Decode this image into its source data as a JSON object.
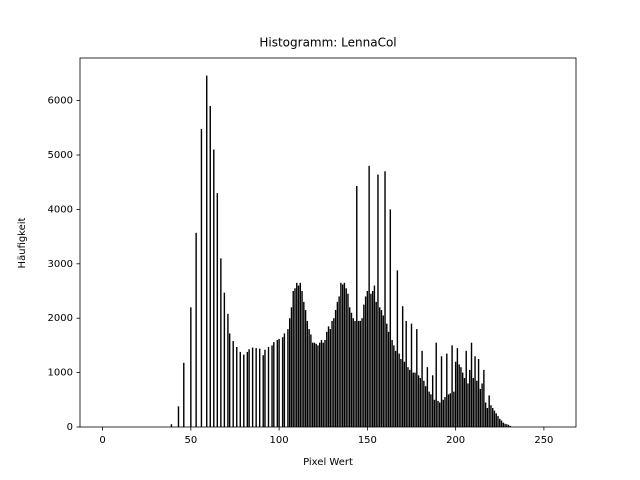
{
  "chart_data": {
    "type": "bar",
    "title": "Histogramm: LennaCol",
    "x_label": "Pixel Wert",
    "y_label": "Häufigkeit",
    "color": "#000000",
    "x": [
      0,
      1,
      2,
      3,
      4,
      5,
      6,
      7,
      8,
      9,
      10,
      11,
      12,
      13,
      14,
      15,
      16,
      17,
      18,
      19,
      20,
      21,
      22,
      23,
      24,
      25,
      26,
      27,
      28,
      29,
      30,
      31,
      32,
      33,
      34,
      35,
      36,
      37,
      38,
      39,
      40,
      41,
      42,
      43,
      44,
      45,
      46,
      47,
      48,
      49,
      50,
      51,
      52,
      53,
      54,
      55,
      56,
      57,
      58,
      59,
      60,
      61,
      62,
      63,
      64,
      65,
      66,
      67,
      68,
      69,
      70,
      71,
      72,
      73,
      74,
      75,
      76,
      77,
      78,
      79,
      80,
      81,
      82,
      83,
      84,
      85,
      86,
      87,
      88,
      89,
      90,
      91,
      92,
      93,
      94,
      95,
      96,
      97,
      98,
      99,
      100,
      101,
      102,
      103,
      104,
      105,
      106,
      107,
      108,
      109,
      110,
      111,
      112,
      113,
      114,
      115,
      116,
      117,
      118,
      119,
      120,
      121,
      122,
      123,
      124,
      125,
      126,
      127,
      128,
      129,
      130,
      131,
      132,
      133,
      134,
      135,
      136,
      137,
      138,
      139,
      140,
      141,
      142,
      143,
      144,
      145,
      146,
      147,
      148,
      149,
      150,
      151,
      152,
      153,
      154,
      155,
      156,
      157,
      158,
      159,
      160,
      161,
      162,
      163,
      164,
      165,
      166,
      167,
      168,
      169,
      170,
      171,
      172,
      173,
      174,
      175,
      176,
      177,
      178,
      179,
      180,
      181,
      182,
      183,
      184,
      185,
      186,
      187,
      188,
      189,
      190,
      191,
      192,
      193,
      194,
      195,
      196,
      197,
      198,
      199,
      200,
      201,
      202,
      203,
      204,
      205,
      206,
      207,
      208,
      209,
      210,
      211,
      212,
      213,
      214,
      215,
      216,
      217,
      218,
      219,
      220,
      221,
      222,
      223,
      224,
      225,
      226,
      227,
      228,
      229,
      230,
      231,
      232,
      233,
      234,
      235,
      236,
      237,
      238,
      239,
      240,
      241,
      242,
      243,
      244,
      245,
      246,
      247,
      248,
      249,
      250,
      251,
      252,
      253,
      254,
      255
    ],
    "values": [
      0,
      0,
      0,
      0,
      0,
      0,
      0,
      0,
      0,
      0,
      0,
      0,
      0,
      0,
      0,
      0,
      0,
      0,
      0,
      0,
      0,
      0,
      0,
      0,
      0,
      0,
      0,
      0,
      0,
      0,
      0,
      0,
      0,
      0,
      0,
      0,
      0,
      0,
      0,
      50,
      0,
      0,
      0,
      380,
      0,
      0,
      1180,
      0,
      0,
      0,
      2200,
      0,
      0,
      3570,
      0,
      0,
      5480,
      0,
      0,
      6460,
      0,
      5900,
      0,
      5100,
      0,
      4300,
      0,
      3100,
      0,
      2470,
      0,
      2080,
      1720,
      0,
      1580,
      0,
      1470,
      0,
      1380,
      0,
      1330,
      0,
      1380,
      1430,
      0,
      1460,
      0,
      1450,
      0,
      1440,
      0,
      1320,
      1420,
      0,
      1470,
      0,
      1500,
      1560,
      0,
      1600,
      1620,
      0,
      1650,
      1720,
      0,
      1800,
      2000,
      2200,
      2500,
      2550,
      2650,
      2600,
      2650,
      2500,
      2300,
      2150,
      1950,
      1800,
      1700,
      1550,
      1550,
      1530,
      1500,
      1550,
      1600,
      1550,
      1600,
      1750,
      1850,
      1800,
      1950,
      2000,
      2150,
      2300,
      2400,
      2650,
      2620,
      2650,
      2550,
      2450,
      2200,
      2100,
      2000,
      1950,
      4430,
      1950,
      1950,
      2000,
      2250,
      2400,
      2500,
      4800,
      2450,
      2500,
      2600,
      2300,
      4640,
      2200,
      2150,
      2050,
      4700,
      1900,
      1750,
      4000,
      1600,
      1500,
      1400,
      2880,
      1350,
      1250,
      2220,
      1200,
      1950,
      1100,
      1050,
      1900,
      1000,
      1000,
      1800,
      950,
      900,
      1400,
      850,
      750,
      1100,
      650,
      600,
      950,
      500,
      1550,
      480,
      450,
      1300,
      500,
      550,
      1350,
      600,
      620,
      1500,
      650,
      1200,
      1450,
      1150,
      1100,
      1000,
      900,
      1400,
      800,
      1050,
      1550,
      900,
      1300,
      850,
      1250,
      700,
      800,
      1050,
      450,
      350,
      580,
      400,
      350,
      300,
      250,
      200,
      150,
      120,
      80,
      60,
      50,
      40,
      20,
      0,
      0,
      0,
      0,
      0,
      0,
      0,
      0,
      0,
      0,
      0,
      0,
      0,
      0,
      0,
      0,
      0,
      0,
      0,
      0,
      0,
      0,
      0,
      0
    ],
    "xlim": [
      -12.79,
      268.19
    ],
    "xticks": [
      0,
      50,
      100,
      150,
      200,
      250
    ],
    "ylim": [
      0,
      6783
    ],
    "yticks": [
      0,
      1000,
      2000,
      3000,
      4000,
      5000,
      6000
    ]
  }
}
